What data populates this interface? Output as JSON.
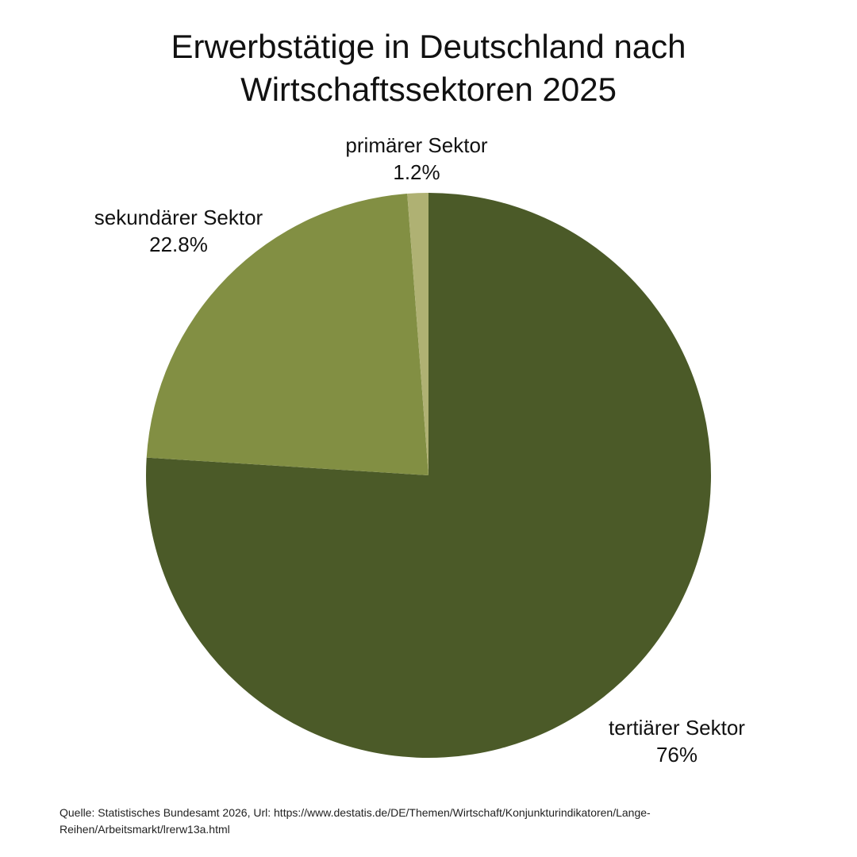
{
  "chart_data": {
    "type": "pie",
    "title_lines": [
      "Erwerbstätige in Deutschland nach",
      "Wirtschaftssektoren 2025"
    ],
    "slices": [
      {
        "label": "tertiärer Sektor",
        "value": 76,
        "value_label": "76%",
        "color": "#4b5a28"
      },
      {
        "label": "sekundärer Sektor",
        "value": 22.8,
        "value_label": "22.8%",
        "color": "#828f43"
      },
      {
        "label": "primärer Sektor",
        "value": 1.2,
        "value_label": "1.2%",
        "color": "#afb173"
      }
    ],
    "start": "12 o'clock",
    "direction": "clockwise"
  },
  "footer": {
    "source_line1": "Quelle: Statistisches Bundesamt 2026, Url: https://www.destatis.de/DE/Themen/Wirtschaft/Konjunkturindikatoren/Lange-",
    "source_line2": "Reihen/Arbeitsmarkt/lrerw13a.html"
  }
}
